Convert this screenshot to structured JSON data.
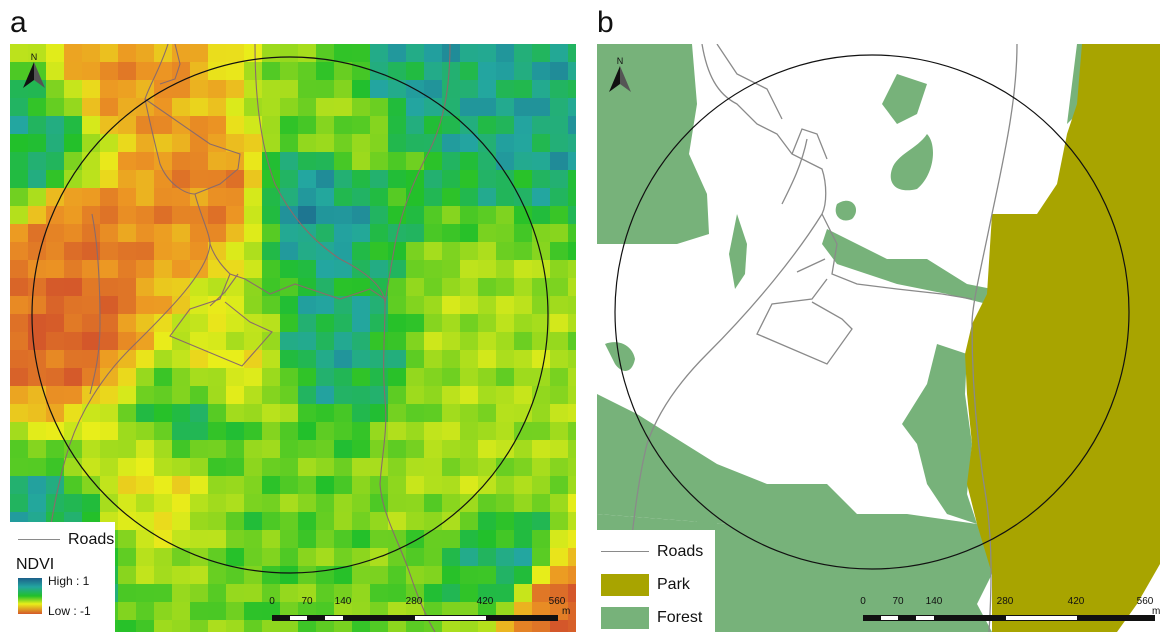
{
  "panels": [
    {
      "letter": "a",
      "north_label": "N",
      "legend": {
        "roads_label": "Roads",
        "raster_title": "NDVI",
        "high_label": "High : 1",
        "low_label": "Low : -1"
      },
      "scale": {
        "ticks": [
          "0",
          "70",
          "140",
          "280",
          "420",
          "560"
        ],
        "unit": "m"
      }
    },
    {
      "letter": "b",
      "north_label": "N",
      "legend": {
        "roads_label": "Roads",
        "park_label": "Park",
        "forest_label": "Forest"
      },
      "scale": {
        "ticks": [
          "0",
          "70",
          "140",
          "280",
          "420",
          "560"
        ],
        "unit": "m"
      }
    }
  ],
  "colors": {
    "park": "#a8a400",
    "forest": "#77b27a",
    "roads": "#8a8a8a",
    "ndvi_high": "#1c5f8a",
    "ndvi_mid": "#22c02a",
    "ndvi_yellow": "#e9ee1a",
    "ndvi_low": "#d4572a"
  }
}
